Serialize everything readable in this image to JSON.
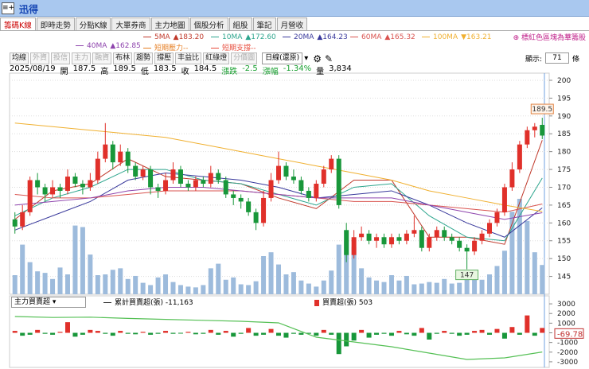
{
  "header": {
    "title": "迅得"
  },
  "tabs": [
    "籌碼K線",
    "即時走勢",
    "分點K線",
    "大單券商",
    "主力地圖",
    "個股分析",
    "組股",
    "筆記",
    "月營收"
  ],
  "note": "標紅色區塊為華籌股",
  "toolbar": {
    "buttons": [
      "均線",
      "外資",
      "投信",
      "主力",
      "融資",
      "布林",
      "趨勢",
      "撐壓",
      "丰益比",
      "紅綠燈",
      "分價圖"
    ],
    "period": "日線(還原)",
    "display_label": "顯示:",
    "display_count": 71,
    "display_unit": "條"
  },
  "info": {
    "date": "2025/08/19",
    "items": [
      {
        "label": "開",
        "value": 187.5
      },
      {
        "label": "高",
        "value": 189.5
      },
      {
        "label": "低",
        "value": 183.5
      },
      {
        "label": "收",
        "value": 184.5
      },
      {
        "label": "漲跌",
        "value": -2.5
      },
      {
        "label": "漲幅",
        "value": -1.34,
        "value_label": "-1.34%"
      },
      {
        "label": "量",
        "value": 3834,
        "value_label": "3,834"
      }
    ]
  },
  "chart_data": [
    {
      "type": "candlestick",
      "ylim": [
        140,
        202
      ],
      "yticks": [
        145,
        150,
        155,
        160,
        165,
        170,
        175,
        180,
        185,
        190,
        195,
        200
      ],
      "grid": true,
      "up_color": "#e0302a",
      "down_color": "#18973a",
      "volume_color": "#9dbbdc",
      "candles": [
        [
          161,
          163,
          157,
          159
        ],
        [
          159,
          165,
          158,
          163
        ],
        [
          163,
          173,
          162,
          172
        ],
        [
          172,
          174,
          168,
          170
        ],
        [
          170,
          171,
          166,
          168
        ],
        [
          168,
          172,
          167,
          170
        ],
        [
          170,
          171,
          167,
          169
        ],
        [
          169,
          175,
          168,
          173
        ],
        [
          173,
          174,
          170,
          171
        ],
        [
          171,
          172,
          168,
          170
        ],
        [
          170,
          174,
          169,
          172
        ],
        [
          172,
          180,
          171,
          178
        ],
        [
          178,
          188,
          177,
          182
        ],
        [
          182,
          183,
          175,
          177
        ],
        [
          177,
          182,
          176,
          180
        ],
        [
          180,
          181,
          174,
          176
        ],
        [
          176,
          177,
          172,
          173
        ],
        [
          173,
          176,
          172,
          175
        ],
        [
          175,
          176,
          168,
          170
        ],
        [
          170,
          171,
          167,
          169
        ],
        [
          169,
          174,
          168,
          172
        ],
        [
          172,
          177,
          171,
          175
        ],
        [
          175,
          176,
          170,
          171
        ],
        [
          171,
          172,
          169,
          170
        ],
        [
          170,
          173,
          169,
          172
        ],
        [
          172,
          173,
          170,
          171
        ],
        [
          171,
          176,
          170,
          174
        ],
        [
          174,
          175,
          171,
          172
        ],
        [
          172,
          173,
          167,
          168
        ],
        [
          168,
          169,
          165,
          167
        ],
        [
          167,
          168,
          164,
          166
        ],
        [
          166,
          167,
          162,
          163
        ],
        [
          163,
          164,
          158,
          160
        ],
        [
          160,
          169,
          159,
          167
        ],
        [
          167,
          174,
          166,
          172
        ],
        [
          172,
          180,
          171,
          176
        ],
        [
          176,
          177,
          172,
          173
        ],
        [
          173,
          175,
          171,
          172
        ],
        [
          172,
          173,
          168,
          169
        ],
        [
          169,
          170,
          166,
          167
        ],
        [
          167,
          172,
          166,
          171
        ],
        [
          171,
          176,
          170,
          175
        ],
        [
          175,
          179,
          174,
          178
        ],
        [
          178,
          179,
          164,
          165
        ],
        [
          158,
          160,
          149,
          151
        ],
        [
          151,
          158,
          150,
          156
        ],
        [
          156,
          159,
          155,
          157
        ],
        [
          157,
          158,
          154,
          155
        ],
        [
          155,
          157,
          153,
          156
        ],
        [
          156,
          157,
          153,
          154
        ],
        [
          154,
          157,
          153,
          156
        ],
        [
          156,
          157,
          154,
          155
        ],
        [
          155,
          158,
          154,
          157
        ],
        [
          157,
          162,
          156,
          158
        ],
        [
          158,
          159,
          152,
          153
        ],
        [
          153,
          157,
          152,
          156
        ],
        [
          156,
          159,
          155,
          158
        ],
        [
          158,
          159,
          155,
          156
        ],
        [
          156,
          157,
          154,
          155
        ],
        [
          155,
          156,
          152,
          153
        ],
        [
          153,
          154,
          147,
          152
        ],
        [
          152,
          156,
          151,
          155
        ],
        [
          155,
          158,
          154,
          157
        ],
        [
          157,
          161,
          156,
          160
        ],
        [
          160,
          164,
          159,
          163
        ],
        [
          163,
          171,
          162,
          170
        ],
        [
          170,
          177,
          169,
          175
        ],
        [
          175,
          183,
          174,
          182
        ],
        [
          182,
          187,
          181,
          186
        ],
        [
          186,
          188,
          184,
          187
        ],
        [
          187.5,
          189.5,
          183.5,
          184.5
        ]
      ],
      "volume": [
        2500,
        6500,
        4200,
        3000,
        2800,
        2000,
        3500,
        2600,
        9000,
        8800,
        5200,
        2500,
        2600,
        3200,
        3400,
        2000,
        2400,
        1500,
        1200,
        2200,
        2600,
        1600,
        1200,
        1000,
        900,
        1200,
        3400,
        4000,
        1900,
        2200,
        1300,
        1200,
        1700,
        5000,
        5500,
        3900,
        2600,
        2900,
        1800,
        1400,
        1000,
        1800,
        3100,
        6500,
        7000,
        6200,
        3400,
        2200,
        1800,
        1600,
        2500,
        1800,
        2400,
        1300,
        1400,
        1600,
        1500,
        2000,
        1400,
        1500,
        2000,
        2500,
        1900,
        2600,
        3700,
        5700,
        10800,
        12500,
        9600,
        5500,
        3834
      ],
      "ma_days": [
        0,
        5,
        10,
        15,
        20,
        25,
        30,
        35,
        40,
        45,
        50,
        55,
        60,
        65,
        70
      ],
      "series": [
        {
          "name": "5MA",
          "color": "#c0392b",
          "value": 183.2,
          "value_label": "▲183.20",
          "values": [
            161,
            169,
            171,
            178,
            173,
            172,
            171,
            167,
            164,
            172,
            172,
            156,
            156,
            154,
            183.2
          ]
        },
        {
          "name": "10MA",
          "color": "#2ca58d",
          "value": 172.6,
          "value_label": "▲172.60",
          "values": [
            162,
            167,
            170,
            175,
            175,
            172,
            171,
            168,
            165,
            170,
            171,
            162,
            156,
            155,
            172.6
          ]
        },
        {
          "name": "20MA",
          "color": "#3a3a9c",
          "value": 164.23,
          "value_label": "▲164.23",
          "values": [
            158,
            162,
            166,
            172,
            174,
            173,
            172,
            170,
            167,
            168,
            169,
            165,
            160,
            156,
            164.23
          ]
        },
        {
          "name": "60MA",
          "color": "#d9534f",
          "value": 165.32,
          "value_label": "▲165.32",
          "values": [
            168,
            167,
            167,
            168,
            169,
            169,
            169,
            168,
            167,
            166,
            166,
            165,
            164,
            163,
            165.32
          ]
        },
        {
          "name": "100MA",
          "color": "#f0b030",
          "value": 163.21,
          "value_label": "▼163.21",
          "values": [
            188,
            187,
            186,
            185,
            184,
            182,
            180,
            178,
            176,
            174,
            172,
            169,
            167,
            165,
            163.21
          ]
        },
        {
          "name": "40MA",
          "color": "#8e44ad",
          "value": 162.85,
          "value_label": "▲162.85",
          "values": [
            165,
            166,
            167,
            169,
            170,
            170,
            169,
            168,
            167,
            167,
            167,
            165,
            163,
            161,
            162.85
          ]
        }
      ],
      "extra_legend": [
        {
          "name": "短期壓力--",
          "color": "#e67e22"
        },
        {
          "name": "短期支撐--",
          "color": "#e74c3c"
        }
      ],
      "high_marker": {
        "index": 70,
        "value": 189.5
      },
      "low_marker": {
        "index": 60,
        "value": 147
      }
    },
    {
      "type": "bar",
      "title": "主力買賣超",
      "ylim": [
        -3500,
        3500
      ],
      "yticks": [
        3000,
        2000,
        1000,
        0,
        -1000,
        -2000,
        -3000
      ],
      "series": [
        {
          "name": "買賣超(張)",
          "value": 503,
          "up_color": "#e0302a",
          "down_color": "#18973a",
          "values": [
            200,
            -300,
            -200,
            300,
            -100,
            -200,
            100,
            1100,
            -400,
            -200,
            300,
            200,
            -100,
            -300,
            200,
            -100,
            -150,
            100,
            -200,
            -100,
            200,
            -100,
            -50,
            100,
            -150,
            -100,
            300,
            -200,
            200,
            -400,
            -100,
            500,
            -300,
            -200,
            400,
            -300,
            -500,
            -100,
            -200,
            -100,
            -300,
            300,
            -200,
            -2200,
            -1400,
            -800,
            300,
            -500,
            -200,
            -100,
            -300,
            200,
            -150,
            -300,
            500,
            -700,
            -100,
            200,
            -100,
            -300,
            -200,
            200,
            300,
            -200,
            400,
            -600,
            600,
            -200,
            1800,
            -300,
            503
          ]
        }
      ],
      "cumulative": {
        "name": "累計買賣超(張)",
        "value": -11163,
        "value_label": "-11,163",
        "color": "#55c055",
        "days": [
          0,
          5,
          10,
          15,
          20,
          25,
          30,
          35,
          40,
          45,
          50,
          55,
          60,
          65,
          70
        ],
        "values": [
          0,
          -300,
          -200,
          -600,
          -900,
          -1200,
          -1500,
          -2000,
          -6500,
          -8000,
          -9500,
          -11500,
          -13500,
          -13000,
          -11163
        ]
      },
      "marker": -69.78
    }
  ]
}
